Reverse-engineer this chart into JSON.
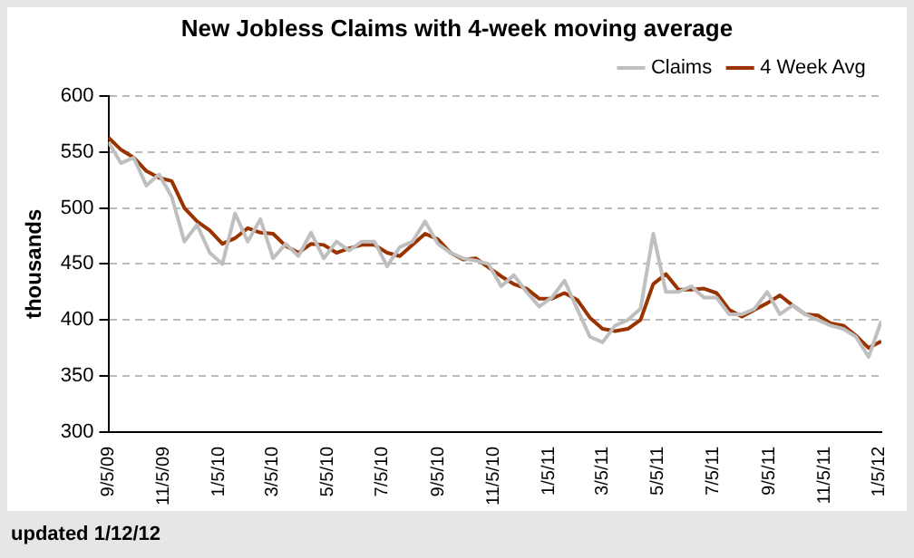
{
  "chart_data": {
    "type": "line",
    "title": "New Jobless Claims with 4-week moving average",
    "ylabel": "thousands",
    "x": [
      "2009-09-05",
      "2009-09-19",
      "2009-10-03",
      "2009-10-17",
      "2009-10-31",
      "2009-11-14",
      "2009-11-28",
      "2009-12-12",
      "2009-12-26",
      "2010-01-09",
      "2010-01-23",
      "2010-02-06",
      "2010-02-20",
      "2010-03-06",
      "2010-03-20",
      "2010-04-03",
      "2010-04-17",
      "2010-05-01",
      "2010-05-15",
      "2010-05-29",
      "2010-06-12",
      "2010-06-26",
      "2010-07-10",
      "2010-07-24",
      "2010-08-07",
      "2010-08-21",
      "2010-09-04",
      "2010-09-18",
      "2010-10-02",
      "2010-10-16",
      "2010-10-30",
      "2010-11-13",
      "2010-11-27",
      "2010-12-11",
      "2010-12-25",
      "2011-01-08",
      "2011-01-22",
      "2011-02-05",
      "2011-02-19",
      "2011-03-05",
      "2011-03-19",
      "2011-04-02",
      "2011-04-16",
      "2011-04-30",
      "2011-05-14",
      "2011-05-28",
      "2011-06-11",
      "2011-06-25",
      "2011-07-09",
      "2011-07-23",
      "2011-08-06",
      "2011-08-20",
      "2011-09-03",
      "2011-09-17",
      "2011-10-01",
      "2011-10-15",
      "2011-10-29",
      "2011-11-12",
      "2011-11-26",
      "2011-12-10",
      "2011-12-24",
      "2012-01-07"
    ],
    "series": [
      {
        "name": "Claims",
        "color": "#bfbfbf",
        "values": [
          559,
          540,
          545,
          520,
          530,
          510,
          470,
          485,
          460,
          450,
          495,
          470,
          490,
          455,
          468,
          457,
          478,
          455,
          470,
          462,
          470,
          470,
          448,
          465,
          470,
          488,
          468,
          460,
          455,
          453,
          450,
          430,
          440,
          425,
          412,
          420,
          435,
          410,
          385,
          380,
          395,
          400,
          410,
          477,
          425,
          425,
          430,
          420,
          420,
          405,
          405,
          410,
          425,
          405,
          413,
          405,
          400,
          395,
          392,
          385,
          367,
          399
        ]
      },
      {
        "name": "4 Week Avg",
        "color": "#993300",
        "values": [
          563,
          552,
          545,
          533,
          527,
          524,
          500,
          488,
          480,
          468,
          473,
          482,
          478,
          477,
          466,
          460,
          468,
          467,
          460,
          464,
          467,
          467,
          460,
          457,
          467,
          477,
          472,
          460,
          454,
          455,
          447,
          439,
          432,
          428,
          419,
          419,
          424,
          418,
          402,
          392,
          390,
          392,
          400,
          432,
          441,
          427,
          427,
          428,
          424,
          409,
          403,
          409,
          415,
          422,
          413,
          405,
          404,
          397,
          395,
          386,
          375,
          381
        ]
      }
    ],
    "xlim": [
      "2009-09-05",
      "2012-01-07"
    ],
    "xticks": [
      {
        "value": "2009-09-05",
        "label": "9/5/09"
      },
      {
        "value": "2009-11-05",
        "label": "11/5/09"
      },
      {
        "value": "2010-01-05",
        "label": "1/5/10"
      },
      {
        "value": "2010-03-05",
        "label": "3/5/10"
      },
      {
        "value": "2010-05-05",
        "label": "5/5/10"
      },
      {
        "value": "2010-07-05",
        "label": "7/5/10"
      },
      {
        "value": "2010-09-05",
        "label": "9/5/10"
      },
      {
        "value": "2010-11-05",
        "label": "11/5/10"
      },
      {
        "value": "2011-01-05",
        "label": "1/5/11"
      },
      {
        "value": "2011-03-05",
        "label": "3/5/11"
      },
      {
        "value": "2011-05-05",
        "label": "5/5/11"
      },
      {
        "value": "2011-07-05",
        "label": "7/5/11"
      },
      {
        "value": "2011-09-05",
        "label": "9/5/11"
      },
      {
        "value": "2011-11-05",
        "label": "11/5/11"
      },
      {
        "value": "2012-01-05",
        "label": "1/5/12"
      }
    ],
    "ylim": [
      300,
      600
    ],
    "yticks": [
      300,
      350,
      400,
      450,
      500,
      550,
      600
    ],
    "grid": "y",
    "legend": "top right",
    "marker": "none",
    "line_style": "solid",
    "annotations": [
      "updated 1/12/12"
    ]
  }
}
